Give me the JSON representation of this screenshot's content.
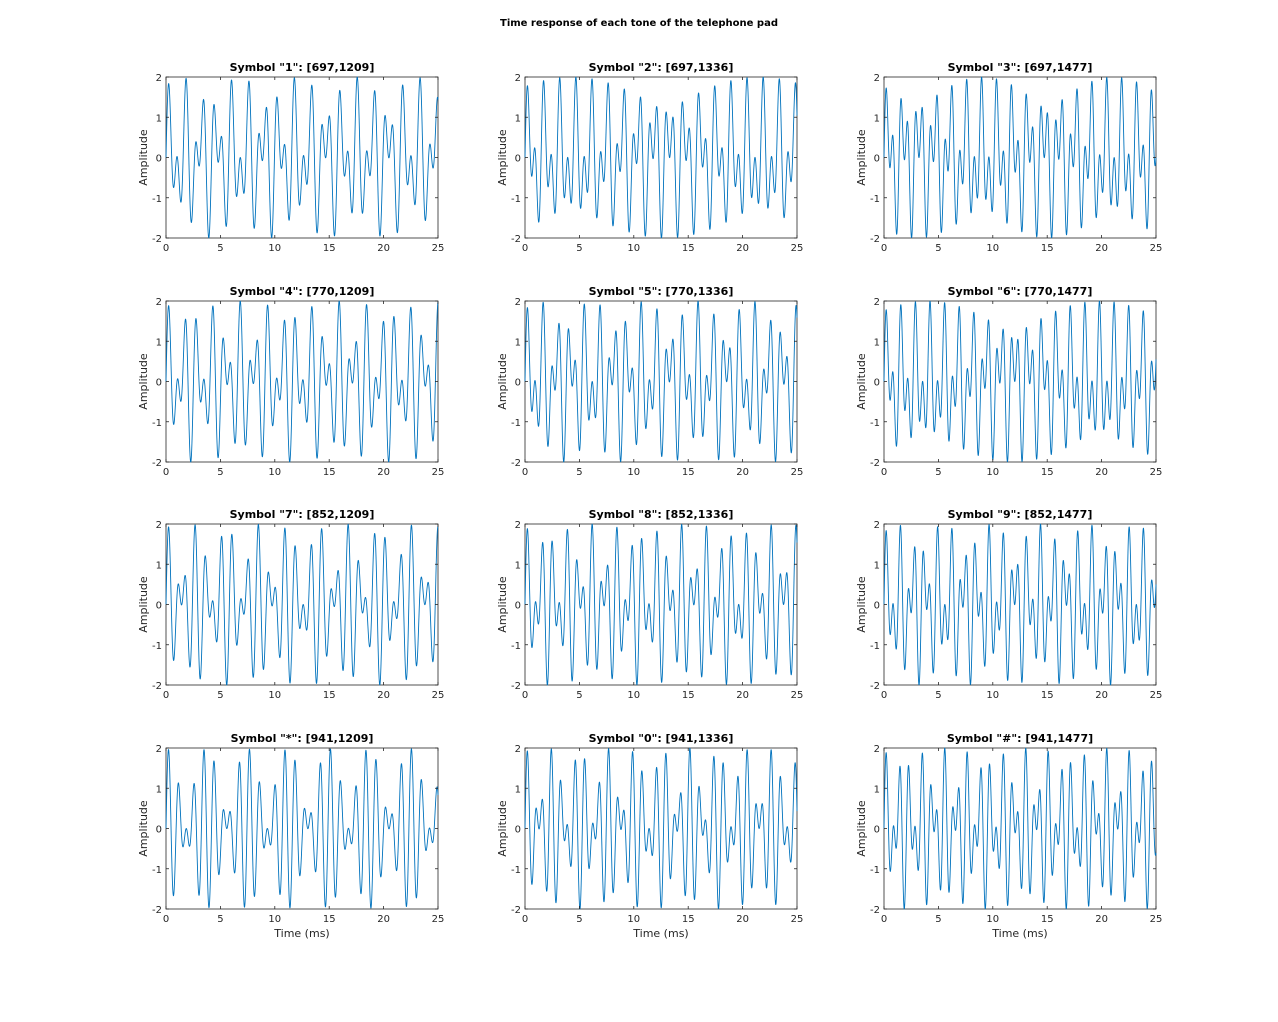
{
  "figure_title": "Time response of each tone of the telephone pad",
  "line_color": "#0072BD",
  "chart_data": [
    {
      "type": "line",
      "title": "Symbol \"1\": [697,1209]",
      "low_hz": 697,
      "high_hz": 1209,
      "xlabel": "",
      "ylabel": "Amplitude",
      "xlim": [
        0,
        25
      ],
      "ylim": [
        -2,
        2
      ],
      "xticks": [
        0,
        5,
        10,
        15,
        20,
        25
      ],
      "yticks": [
        -2,
        -1,
        0,
        1,
        2
      ],
      "grid": false,
      "series": [
        {
          "formula": "sin(2*pi*697*t)+sin(2*pi*1209*t)",
          "x_units": "ms"
        }
      ]
    },
    {
      "type": "line",
      "title": "Symbol \"2\": [697,1336]",
      "low_hz": 697,
      "high_hz": 1336,
      "xlabel": "",
      "ylabel": "Amplitude",
      "xlim": [
        0,
        25
      ],
      "ylim": [
        -2,
        2
      ],
      "xticks": [
        0,
        5,
        10,
        15,
        20,
        25
      ],
      "yticks": [
        -2,
        -1,
        0,
        1,
        2
      ],
      "grid": false,
      "series": [
        {
          "formula": "sin(2*pi*697*t)+sin(2*pi*1336*t)",
          "x_units": "ms"
        }
      ]
    },
    {
      "type": "line",
      "title": "Symbol \"3\": [697,1477]",
      "low_hz": 697,
      "high_hz": 1477,
      "xlabel": "",
      "ylabel": "Amplitude",
      "xlim": [
        0,
        25
      ],
      "ylim": [
        -2,
        2
      ],
      "xticks": [
        0,
        5,
        10,
        15,
        20,
        25
      ],
      "yticks": [
        -2,
        -1,
        0,
        1,
        2
      ],
      "grid": false,
      "series": [
        {
          "formula": "sin(2*pi*697*t)+sin(2*pi*1477*t)",
          "x_units": "ms"
        }
      ]
    },
    {
      "type": "line",
      "title": "Symbol \"4\": [770,1209]",
      "low_hz": 770,
      "high_hz": 1209,
      "xlabel": "",
      "ylabel": "Amplitude",
      "xlim": [
        0,
        25
      ],
      "ylim": [
        -2,
        2
      ],
      "xticks": [
        0,
        5,
        10,
        15,
        20,
        25
      ],
      "yticks": [
        -2,
        -1,
        0,
        1,
        2
      ],
      "grid": false,
      "series": [
        {
          "formula": "sin(2*pi*770*t)+sin(2*pi*1209*t)",
          "x_units": "ms"
        }
      ]
    },
    {
      "type": "line",
      "title": "Symbol \"5\": [770,1336]",
      "low_hz": 770,
      "high_hz": 1336,
      "xlabel": "",
      "ylabel": "Amplitude",
      "xlim": [
        0,
        25
      ],
      "ylim": [
        -2,
        2
      ],
      "xticks": [
        0,
        5,
        10,
        15,
        20,
        25
      ],
      "yticks": [
        -2,
        -1,
        0,
        1,
        2
      ],
      "grid": false,
      "series": [
        {
          "formula": "sin(2*pi*770*t)+sin(2*pi*1336*t)",
          "x_units": "ms"
        }
      ]
    },
    {
      "type": "line",
      "title": "Symbol \"6\": [770,1477]",
      "low_hz": 770,
      "high_hz": 1477,
      "xlabel": "",
      "ylabel": "Amplitude",
      "xlim": [
        0,
        25
      ],
      "ylim": [
        -2,
        2
      ],
      "xticks": [
        0,
        5,
        10,
        15,
        20,
        25
      ],
      "yticks": [
        -2,
        -1,
        0,
        1,
        2
      ],
      "grid": false,
      "series": [
        {
          "formula": "sin(2*pi*770*t)+sin(2*pi*1477*t)",
          "x_units": "ms"
        }
      ]
    },
    {
      "type": "line",
      "title": "Symbol \"7\": [852,1209]",
      "low_hz": 852,
      "high_hz": 1209,
      "xlabel": "",
      "ylabel": "Amplitude",
      "xlim": [
        0,
        25
      ],
      "ylim": [
        -2,
        2
      ],
      "xticks": [
        0,
        5,
        10,
        15,
        20,
        25
      ],
      "yticks": [
        -2,
        -1,
        0,
        1,
        2
      ],
      "grid": false,
      "series": [
        {
          "formula": "sin(2*pi*852*t)+sin(2*pi*1209*t)",
          "x_units": "ms"
        }
      ]
    },
    {
      "type": "line",
      "title": "Symbol \"8\": [852,1336]",
      "low_hz": 852,
      "high_hz": 1336,
      "xlabel": "",
      "ylabel": "Amplitude",
      "xlim": [
        0,
        25
      ],
      "ylim": [
        -2,
        2
      ],
      "xticks": [
        0,
        5,
        10,
        15,
        20,
        25
      ],
      "yticks": [
        -2,
        -1,
        0,
        1,
        2
      ],
      "grid": false,
      "series": [
        {
          "formula": "sin(2*pi*852*t)+sin(2*pi*1336*t)",
          "x_units": "ms"
        }
      ]
    },
    {
      "type": "line",
      "title": "Symbol \"9\": [852,1477]",
      "low_hz": 852,
      "high_hz": 1477,
      "xlabel": "",
      "ylabel": "Amplitude",
      "xlim": [
        0,
        25
      ],
      "ylim": [
        -2,
        2
      ],
      "xticks": [
        0,
        5,
        10,
        15,
        20,
        25
      ],
      "yticks": [
        -2,
        -1,
        0,
        1,
        2
      ],
      "grid": false,
      "series": [
        {
          "formula": "sin(2*pi*852*t)+sin(2*pi*1477*t)",
          "x_units": "ms"
        }
      ]
    },
    {
      "type": "line",
      "title": "Symbol \"*\": [941,1209]",
      "low_hz": 941,
      "high_hz": 1209,
      "xlabel": "Time (ms)",
      "ylabel": "Amplitude",
      "xlim": [
        0,
        25
      ],
      "ylim": [
        -2,
        2
      ],
      "xticks": [
        0,
        5,
        10,
        15,
        20,
        25
      ],
      "yticks": [
        -2,
        -1,
        0,
        1,
        2
      ],
      "grid": false,
      "series": [
        {
          "formula": "sin(2*pi*941*t)+sin(2*pi*1209*t)",
          "x_units": "ms"
        }
      ]
    },
    {
      "type": "line",
      "title": "Symbol \"0\": [941,1336]",
      "low_hz": 941,
      "high_hz": 1336,
      "xlabel": "Time (ms)",
      "ylabel": "Amplitude",
      "xlim": [
        0,
        25
      ],
      "ylim": [
        -2,
        2
      ],
      "xticks": [
        0,
        5,
        10,
        15,
        20,
        25
      ],
      "yticks": [
        -2,
        -1,
        0,
        1,
        2
      ],
      "grid": false,
      "series": [
        {
          "formula": "sin(2*pi*941*t)+sin(2*pi*1336*t)",
          "x_units": "ms"
        }
      ]
    },
    {
      "type": "line",
      "title": "Symbol \"#\": [941,1477]",
      "low_hz": 941,
      "high_hz": 1477,
      "xlabel": "Time (ms)",
      "ylabel": "Amplitude",
      "xlim": [
        0,
        25
      ],
      "ylim": [
        -2,
        2
      ],
      "xticks": [
        0,
        5,
        10,
        15,
        20,
        25
      ],
      "yticks": [
        -2,
        -1,
        0,
        1,
        2
      ],
      "grid": false,
      "series": [
        {
          "formula": "sin(2*pi*941*t)+sin(2*pi*1477*t)",
          "x_units": "ms"
        }
      ]
    }
  ]
}
